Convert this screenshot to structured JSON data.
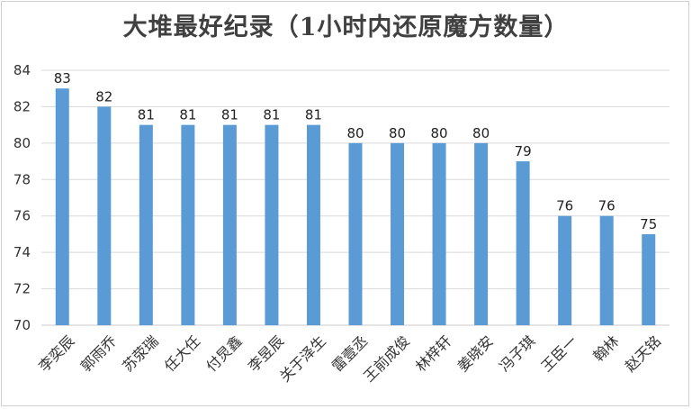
{
  "chart_data": {
    "type": "bar",
    "title": "大堆最好纪录（1小时内还原魔方数量）",
    "xlabel": "",
    "ylabel": "",
    "categories": [
      "李奕辰",
      "郭雨乔",
      "苏荥瑞",
      "任大任",
      "付炅鑫",
      "李昱辰",
      "关于泽生",
      "雷壹丞",
      "王前成俊",
      "林梓轩",
      "姜晓安",
      "冯子琪",
      "王臣一",
      "翰林",
      "赵天铭"
    ],
    "values": [
      83,
      82,
      81,
      81,
      81,
      81,
      81,
      80,
      80,
      80,
      80,
      79,
      76,
      76,
      75
    ],
    "ylim": [
      70,
      84
    ],
    "yticks": [
      70,
      72,
      74,
      76,
      78,
      80,
      82,
      84
    ],
    "grid": true,
    "data_labels": true,
    "bar_color": "#5b9bd5"
  }
}
